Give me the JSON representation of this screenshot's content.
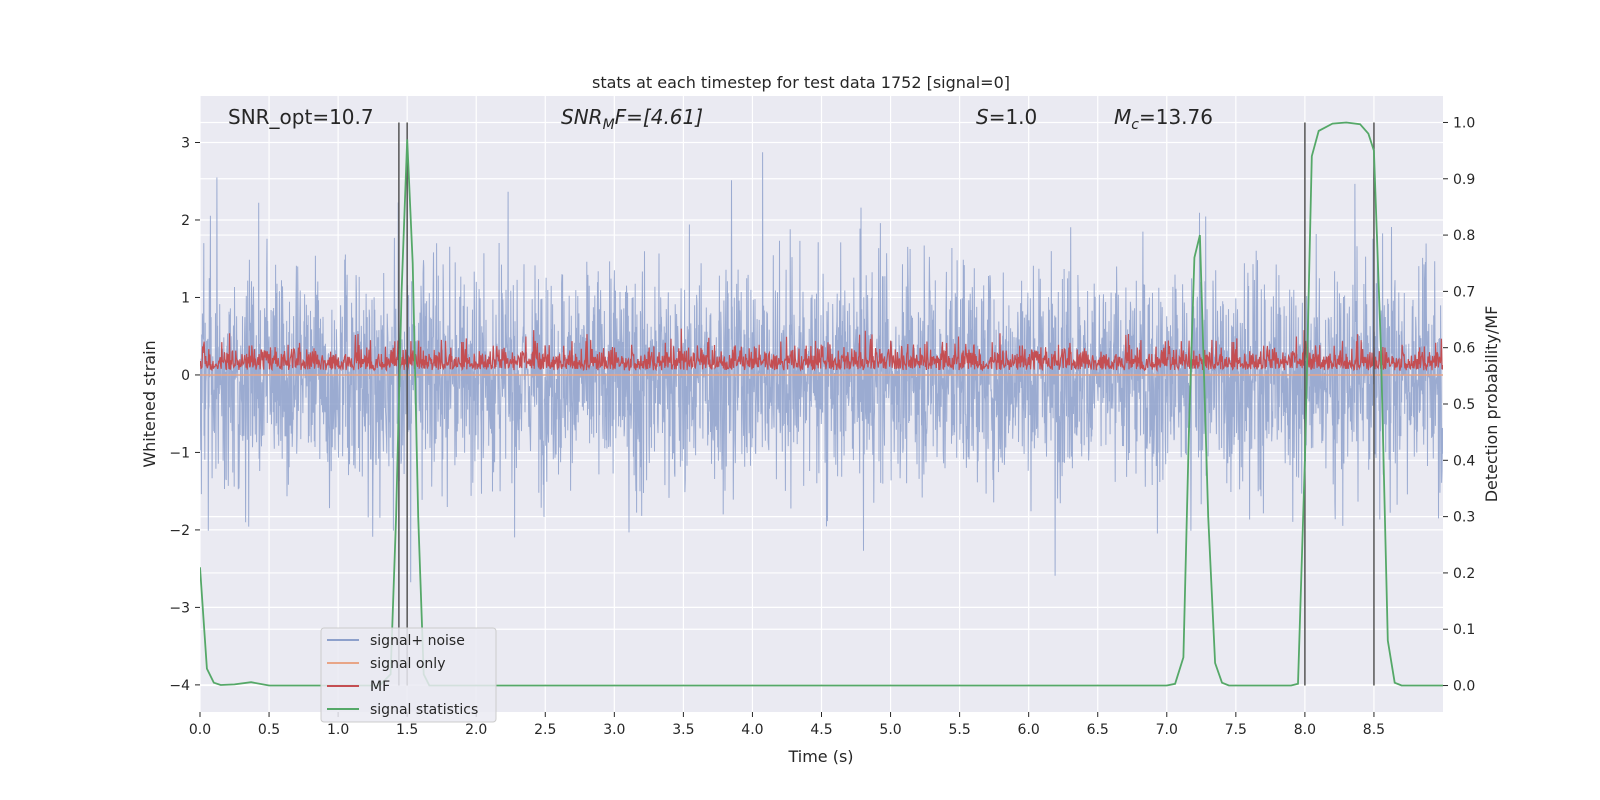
{
  "chart_data": {
    "type": "line",
    "title": "stats at each timestep for test data 1752 [signal=0]",
    "xlabel": "Time (s)",
    "ylabel": "Whitened strain",
    "ylabel_right": "Detection probability/MF",
    "xlim": [
      0.0,
      9.0
    ],
    "ylim": [
      -4.35,
      3.6
    ],
    "ylim_right": [
      -0.047,
      1.047
    ],
    "x_ticks": [
      "0.0",
      "0.5",
      "1.0",
      "1.5",
      "2.0",
      "2.5",
      "3.0",
      "3.5",
      "4.0",
      "4.5",
      "5.0",
      "5.5",
      "6.0",
      "6.5",
      "7.0",
      "7.5",
      "8.0",
      "8.5"
    ],
    "y_ticks": [
      "3",
      "2",
      "1",
      "0",
      "−1",
      "−2",
      "−3",
      "−4"
    ],
    "y_ticks_right": [
      "1.0",
      "0.9",
      "0.8",
      "0.7",
      "0.6",
      "0.5",
      "0.4",
      "0.3",
      "0.2",
      "0.1",
      "0.0"
    ],
    "grid": true,
    "legend_position": "lower-left",
    "annotations": {
      "snr_opt": "SNR_opt=10.7",
      "snr_mf_base": "SNR",
      "snr_mf_sub": "M",
      "snr_mf_rest": "F=[4.61]",
      "s_label": "S",
      "s_value": "=1.0",
      "mc_label": "M",
      "mc_sub": "c",
      "mc_value": "=13.76"
    },
    "vertical_markers_x": [
      1.44,
      1.5,
      8.0,
      8.5
    ],
    "series": [
      {
        "name": "signal+ noise",
        "axis": "left",
        "color": "#8da0cb",
        "description_stats": {
          "center": 0.0,
          "typical_envelope": 1.8,
          "max": 3.1,
          "min": -3.6
        }
      },
      {
        "name": "signal only",
        "axis": "left",
        "color": "#e8a587",
        "x": [
          0.0,
          9.0
        ],
        "y": [
          0.0,
          0.0
        ]
      },
      {
        "name": "MF",
        "axis": "right",
        "color": "#c44e52",
        "description_stats": {
          "baseline": 0.56,
          "max": 0.7,
          "min": 0.545
        }
      },
      {
        "name": "signal statistics",
        "axis": "right",
        "color": "#55a868",
        "x": [
          0.0,
          0.05,
          0.1,
          0.15,
          0.25,
          0.37,
          0.5,
          1.3,
          1.38,
          1.42,
          1.46,
          1.5,
          1.54,
          1.58,
          1.62,
          1.66,
          1.8,
          7.0,
          7.06,
          7.12,
          7.16,
          7.2,
          7.24,
          7.3,
          7.35,
          7.4,
          7.45,
          7.5,
          7.9,
          7.95,
          8.0,
          8.05,
          8.1,
          8.2,
          8.3,
          8.4,
          8.46,
          8.5,
          8.55,
          8.6,
          8.65,
          8.7,
          8.8,
          9.0
        ],
        "y": [
          0.21,
          0.03,
          0.005,
          0.001,
          0.002,
          0.006,
          0.0,
          0.0,
          0.02,
          0.3,
          0.7,
          0.97,
          0.75,
          0.3,
          0.02,
          0.0,
          0.0,
          0.0,
          0.003,
          0.05,
          0.45,
          0.76,
          0.8,
          0.3,
          0.04,
          0.005,
          0.0,
          0.0,
          0.0,
          0.003,
          0.4,
          0.94,
          0.985,
          0.998,
          1.0,
          0.997,
          0.98,
          0.95,
          0.6,
          0.08,
          0.005,
          0.0,
          0.0,
          0.0
        ]
      }
    ]
  }
}
